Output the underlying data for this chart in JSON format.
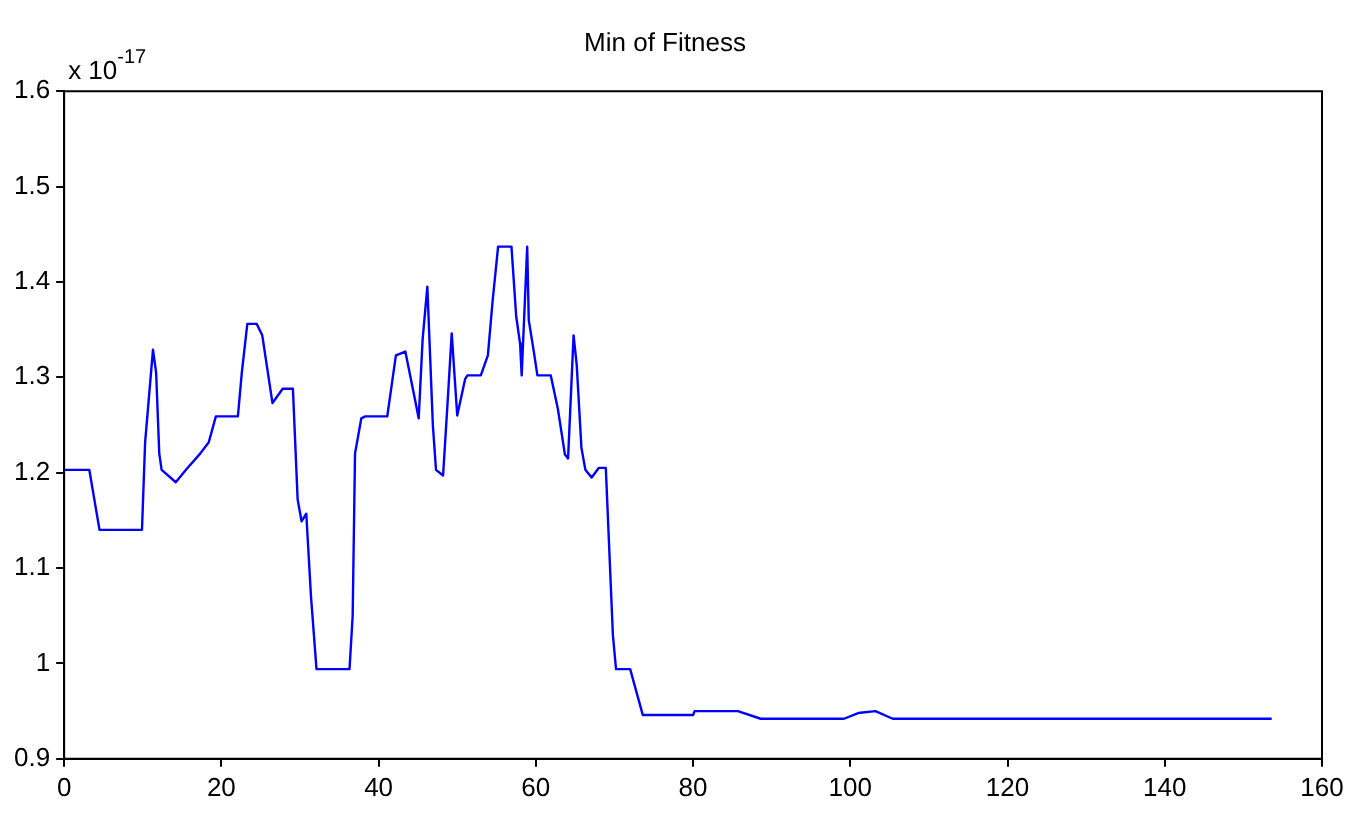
{
  "chart_data": {
    "type": "line",
    "title": "Min of Fitness",
    "annotations": [
      "x 10$^{-17}$"
    ],
    "x": [
      0,
      3.2,
      4.5,
      9.9,
      10.3,
      11.3,
      11.7,
      12.1,
      12.4,
      14.2,
      15.5,
      17.3,
      18.4,
      19.3,
      22.1,
      22.6,
      23.3,
      24.5,
      25.2,
      26.5,
      27.8,
      29.1,
      29.7,
      30.2,
      30.8,
      31.4,
      32.1,
      36.3,
      36.7,
      37,
      37.8,
      38.3,
      41.1,
      42.2,
      43.4,
      44.5,
      45.1,
      45.6,
      46.2,
      46.9,
      47.3,
      48.2,
      48.8,
      49.3,
      50,
      51,
      51.3,
      53,
      53.9,
      54.5,
      55.2,
      56.9,
      57.5,
      58,
      58.2,
      58.9,
      59.1,
      59.7,
      60.2,
      61.9,
      62.8,
      63.7,
      64.1,
      64.8,
      65.2,
      65.8,
      66.3,
      67.1,
      68,
      68.9,
      69.8,
      70.2,
      72,
      72.9,
      73.6,
      80,
      80.2,
      85.7,
      88.6,
      99.2,
      101,
      103.2,
      105.4,
      153.6
    ],
    "series": [
      {
        "color": "#0000ff",
        "values": [
          1.203,
          1.203,
          1.14,
          1.14,
          1.232,
          1.329,
          1.305,
          1.22,
          1.203,
          1.19,
          1.203,
          1.22,
          1.232,
          1.259,
          1.259,
          1.305,
          1.356,
          1.356,
          1.344,
          1.273,
          1.288,
          1.288,
          1.172,
          1.149,
          1.157,
          1.07,
          0.994,
          0.994,
          1.05,
          1.22,
          1.257,
          1.259,
          1.259,
          1.323,
          1.327,
          1.282,
          1.257,
          1.34,
          1.395,
          1.25,
          1.203,
          1.197,
          1.277,
          1.346,
          1.26,
          1.298,
          1.302,
          1.302,
          1.323,
          1.38,
          1.437,
          1.437,
          1.364,
          1.335,
          1.302,
          1.437,
          1.36,
          1.329,
          1.302,
          1.302,
          1.267,
          1.219,
          1.215,
          1.344,
          1.313,
          1.226,
          1.203,
          1.195,
          1.205,
          1.205,
          1.03,
          0.994,
          0.994,
          0.967,
          0.946,
          0.946,
          0.95,
          0.95,
          0.942,
          0.942,
          0.948,
          0.95,
          0.942,
          0.942
        ]
      }
    ],
    "xlim": [
      0,
      160
    ],
    "xticks": [
      0,
      20,
      40,
      60,
      80,
      100,
      120,
      140,
      160
    ],
    "ylim": [
      0.9,
      1.6
    ],
    "yticks": [
      {
        "value": 0.9,
        "label": "0.9"
      },
      {
        "value": 1.0,
        "label": "1"
      },
      {
        "value": 1.1,
        "label": "1.1"
      },
      {
        "value": 1.2,
        "label": "1.2"
      },
      {
        "value": 1.3,
        "label": "1.3"
      },
      {
        "value": 1.4,
        "label": "1.4"
      },
      {
        "value": 1.5,
        "label": "1.5"
      },
      {
        "value": 1.6,
        "label": "1.6"
      }
    ],
    "grid": false,
    "legend": false,
    "marker": "none",
    "line_style": "solid"
  }
}
